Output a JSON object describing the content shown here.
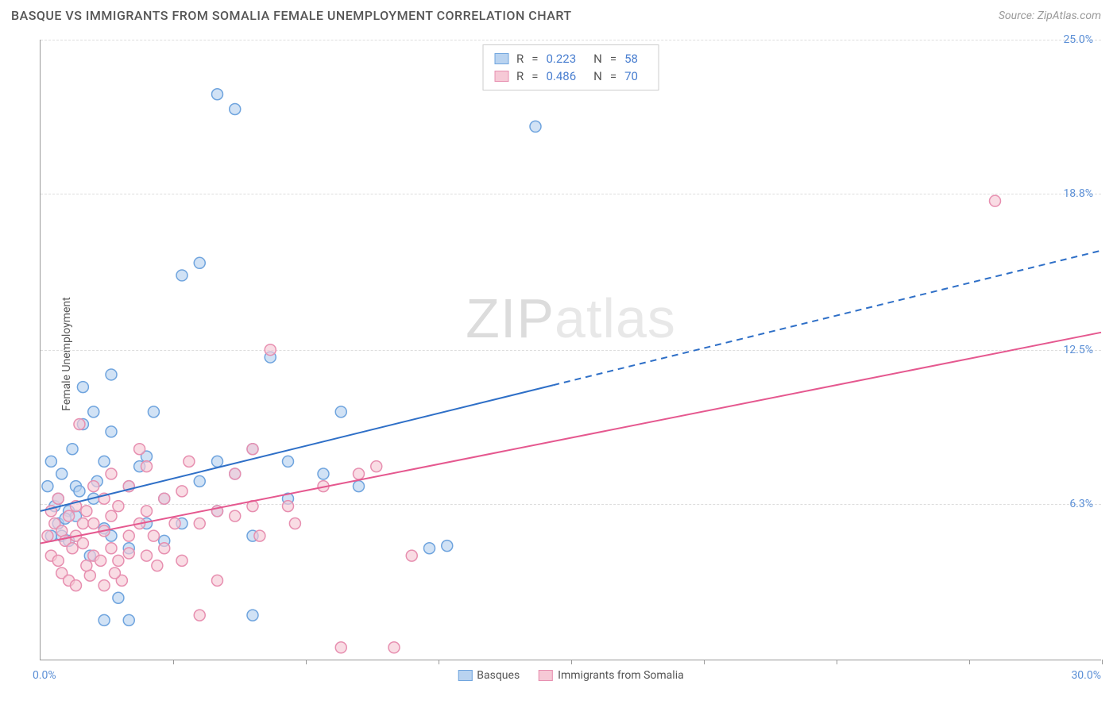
{
  "header": {
    "title": "BASQUE VS IMMIGRANTS FROM SOMALIA FEMALE UNEMPLOYMENT CORRELATION CHART",
    "source_label": "Source: ",
    "source_value": "ZipAtlas.com"
  },
  "chart": {
    "type": "scatter",
    "y_axis_label": "Female Unemployment",
    "xlim": [
      0,
      30
    ],
    "ylim": [
      0,
      25
    ],
    "x_origin_label": "0.0%",
    "x_max_label": "30.0%",
    "x_ticks": [
      3.75,
      7.5,
      11.25,
      15,
      18.75,
      22.5,
      26.25,
      30
    ],
    "y_gridlines": [
      {
        "value": 6.3,
        "label": "6.3%"
      },
      {
        "value": 12.5,
        "label": "12.5%"
      },
      {
        "value": 18.8,
        "label": "18.8%"
      },
      {
        "value": 25.0,
        "label": "25.0%"
      }
    ],
    "watermark": {
      "zip": "ZIP",
      "atlas": "atlas"
    },
    "colors": {
      "blue_fill": "#b9d3f0",
      "blue_stroke": "#6fa4de",
      "blue_line": "#2e6fc7",
      "pink_fill": "#f6c9d6",
      "pink_stroke": "#e78fb0",
      "pink_line": "#e5588f",
      "grid": "#dddddd",
      "axis": "#999999",
      "tick_text": "#5b8fd6",
      "bg": "#ffffff"
    },
    "marker_radius": 7,
    "marker_opacity": 0.65,
    "line_width": 2,
    "series": [
      {
        "key": "basques",
        "label": "Basques",
        "color_fill": "#b9d3f0",
        "color_stroke": "#6fa4de",
        "line_color": "#2e6fc7",
        "R": "0.223",
        "N": "58",
        "regression": {
          "x1": 0,
          "y1": 6.0,
          "x2_solid": 14.5,
          "x2": 30,
          "y2": 16.5
        },
        "points": [
          [
            0.2,
            7.0
          ],
          [
            0.3,
            8.0
          ],
          [
            0.4,
            6.2
          ],
          [
            0.5,
            5.5
          ],
          [
            0.5,
            6.5
          ],
          [
            0.6,
            5.0
          ],
          [
            0.6,
            7.5
          ],
          [
            0.8,
            4.8
          ],
          [
            0.8,
            6.0
          ],
          [
            0.9,
            8.5
          ],
          [
            1.0,
            5.8
          ],
          [
            1.0,
            7.0
          ],
          [
            1.2,
            11.0
          ],
          [
            1.2,
            9.5
          ],
          [
            1.4,
            4.2
          ],
          [
            1.5,
            6.5
          ],
          [
            1.5,
            10.0
          ],
          [
            1.8,
            5.3
          ],
          [
            1.8,
            8.0
          ],
          [
            1.8,
            1.6
          ],
          [
            2.0,
            5.0
          ],
          [
            2.0,
            9.2
          ],
          [
            2.0,
            11.5
          ],
          [
            2.2,
            2.5
          ],
          [
            2.5,
            4.5
          ],
          [
            2.5,
            7.0
          ],
          [
            2.5,
            1.6
          ],
          [
            2.8,
            7.8
          ],
          [
            3.0,
            5.5
          ],
          [
            3.0,
            8.2
          ],
          [
            3.2,
            10.0
          ],
          [
            3.5,
            4.8
          ],
          [
            3.5,
            6.5
          ],
          [
            4.0,
            5.5
          ],
          [
            4.0,
            15.5
          ],
          [
            4.5,
            7.2
          ],
          [
            4.5,
            16.0
          ],
          [
            5.0,
            6.0
          ],
          [
            5.0,
            8.0
          ],
          [
            5.0,
            22.8
          ],
          [
            5.5,
            7.5
          ],
          [
            5.5,
            22.2
          ],
          [
            6.0,
            5.0
          ],
          [
            6.0,
            8.5
          ],
          [
            6.0,
            1.8
          ],
          [
            6.5,
            12.2
          ],
          [
            7.0,
            6.5
          ],
          [
            7.0,
            8.0
          ],
          [
            8.0,
            7.5
          ],
          [
            8.5,
            10.0
          ],
          [
            9.0,
            7.0
          ],
          [
            11.0,
            4.5
          ],
          [
            11.5,
            4.6
          ],
          [
            14.0,
            21.5
          ],
          [
            0.3,
            5.0
          ],
          [
            0.7,
            5.7
          ],
          [
            1.1,
            6.8
          ],
          [
            1.6,
            7.2
          ]
        ]
      },
      {
        "key": "somalia",
        "label": "Immigrants from Somalia",
        "color_fill": "#f6c9d6",
        "color_stroke": "#e78fb0",
        "line_color": "#e5588f",
        "R": "0.486",
        "N": "70",
        "regression": {
          "x1": 0,
          "y1": 4.7,
          "x2_solid": 30,
          "x2": 30,
          "y2": 13.2
        },
        "points": [
          [
            0.2,
            5.0
          ],
          [
            0.3,
            4.2
          ],
          [
            0.3,
            6.0
          ],
          [
            0.4,
            5.5
          ],
          [
            0.5,
            4.0
          ],
          [
            0.5,
            6.5
          ],
          [
            0.6,
            5.2
          ],
          [
            0.6,
            3.5
          ],
          [
            0.7,
            4.8
          ],
          [
            0.8,
            5.8
          ],
          [
            0.8,
            3.2
          ],
          [
            0.9,
            4.5
          ],
          [
            1.0,
            5.0
          ],
          [
            1.0,
            6.2
          ],
          [
            1.0,
            3.0
          ],
          [
            1.1,
            9.5
          ],
          [
            1.2,
            4.7
          ],
          [
            1.2,
            5.5
          ],
          [
            1.3,
            6.0
          ],
          [
            1.4,
            3.4
          ],
          [
            1.5,
            4.2
          ],
          [
            1.5,
            5.5
          ],
          [
            1.5,
            7.0
          ],
          [
            1.7,
            4.0
          ],
          [
            1.8,
            5.2
          ],
          [
            1.8,
            6.5
          ],
          [
            1.8,
            3.0
          ],
          [
            2.0,
            4.5
          ],
          [
            2.0,
            5.8
          ],
          [
            2.0,
            7.5
          ],
          [
            2.2,
            4.0
          ],
          [
            2.2,
            6.2
          ],
          [
            2.3,
            3.2
          ],
          [
            2.5,
            5.0
          ],
          [
            2.5,
            4.3
          ],
          [
            2.5,
            7.0
          ],
          [
            2.8,
            5.5
          ],
          [
            2.8,
            8.5
          ],
          [
            3.0,
            4.2
          ],
          [
            3.0,
            6.0
          ],
          [
            3.0,
            7.8
          ],
          [
            3.2,
            5.0
          ],
          [
            3.5,
            6.5
          ],
          [
            3.5,
            4.5
          ],
          [
            3.8,
            5.5
          ],
          [
            4.0,
            4.0
          ],
          [
            4.0,
            6.8
          ],
          [
            4.2,
            8.0
          ],
          [
            4.5,
            5.5
          ],
          [
            4.5,
            1.8
          ],
          [
            5.0,
            6.0
          ],
          [
            5.0,
            3.2
          ],
          [
            5.5,
            5.8
          ],
          [
            5.5,
            7.5
          ],
          [
            6.0,
            6.2
          ],
          [
            6.0,
            8.5
          ],
          [
            6.2,
            5.0
          ],
          [
            6.5,
            12.5
          ],
          [
            7.0,
            6.2
          ],
          [
            7.2,
            5.5
          ],
          [
            8.0,
            7.0
          ],
          [
            8.5,
            0.5
          ],
          [
            9.0,
            7.5
          ],
          [
            9.5,
            7.8
          ],
          [
            10.0,
            0.5
          ],
          [
            10.5,
            4.2
          ],
          [
            27.0,
            18.5
          ],
          [
            1.3,
            3.8
          ],
          [
            2.1,
            3.5
          ],
          [
            3.3,
            3.8
          ]
        ]
      }
    ],
    "stats_box": {
      "R_label": "R",
      "N_label": "N",
      "eq": "="
    },
    "bottom_legend_order": [
      "basques",
      "somalia"
    ]
  }
}
